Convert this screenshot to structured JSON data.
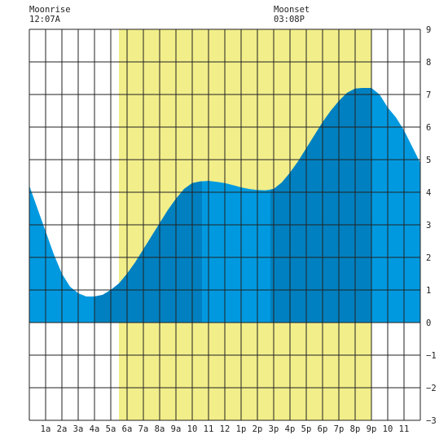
{
  "moonrise": {
    "label": "Moonrise",
    "time": "12:07A"
  },
  "moonset": {
    "label": "Moonset",
    "time": "03:08P"
  },
  "colors": {
    "daylight": "#f2ee8a",
    "tide_light": "#0099e0",
    "tide_dark": "#0080c0",
    "grid": "#222222",
    "background": "#ffffff"
  },
  "chart_data": {
    "type": "area",
    "title": "",
    "xlabel": "",
    "ylabel": "",
    "xlim": [
      0,
      24
    ],
    "ylim": [
      -3,
      9
    ],
    "grid": true,
    "y_ticks": [
      9,
      8,
      7,
      6,
      5,
      4,
      3,
      2,
      1,
      0,
      -1,
      -2,
      -3
    ],
    "x_tick_labels": [
      "1a",
      "2a",
      "3a",
      "4a",
      "5a",
      "6a",
      "7a",
      "8a",
      "9a",
      "10",
      "11",
      "12",
      "1p",
      "2p",
      "3p",
      "4p",
      "5p",
      "6p",
      "7p",
      "8p",
      "9p",
      "10",
      "11"
    ],
    "daylight_hours": [
      5.5,
      21.0
    ],
    "dark_bands_hours": [
      [
        4.0,
        10.6
      ],
      [
        14.8,
        21.0
      ]
    ],
    "series": [
      {
        "x": [
          0,
          0.5,
          1,
          1.5,
          2,
          2.5,
          3,
          3.5,
          4,
          4.5,
          5,
          5.5,
          6,
          6.5,
          7,
          7.5,
          8,
          8.5,
          9,
          9.5,
          10,
          10.5,
          11,
          11.5,
          12,
          12.5,
          13,
          13.5,
          14,
          14.5,
          15,
          15.5,
          16,
          16.5,
          17,
          17.5,
          18,
          18.5,
          19,
          19.5,
          20,
          20.5,
          21,
          21.5,
          22,
          22.5,
          23,
          23.5,
          24
        ],
        "values": [
          4.2,
          3.5,
          2.8,
          2.1,
          1.5,
          1.1,
          0.9,
          0.8,
          0.8,
          0.85,
          1.0,
          1.2,
          1.5,
          1.85,
          2.25,
          2.65,
          3.05,
          3.45,
          3.8,
          4.1,
          4.28,
          4.33,
          4.35,
          4.32,
          4.28,
          4.22,
          4.15,
          4.1,
          4.07,
          4.06,
          4.1,
          4.3,
          4.6,
          4.95,
          5.35,
          5.75,
          6.15,
          6.5,
          6.8,
          7.05,
          7.18,
          7.2,
          7.2,
          7.0,
          6.6,
          6.3,
          5.9,
          5.4,
          4.9
        ]
      }
    ]
  }
}
